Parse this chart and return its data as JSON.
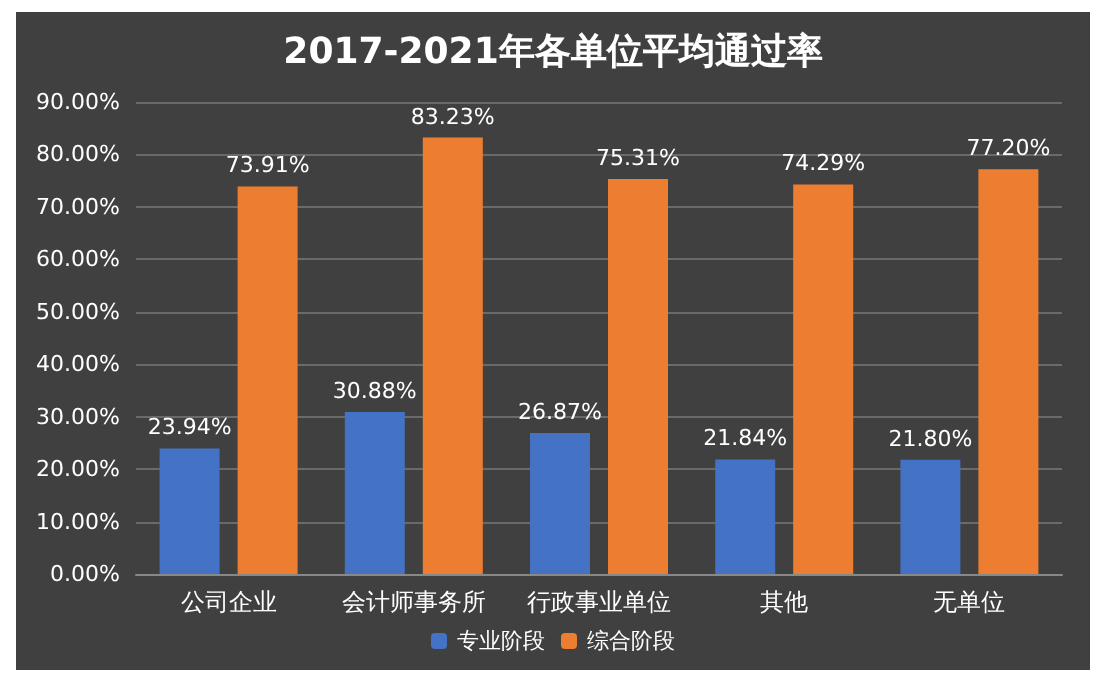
{
  "chart_data": {
    "type": "bar",
    "title": "2017-2021年各单位平均通过率",
    "categories": [
      "公司企业",
      "会计师事务所",
      "行政事业单位",
      "其他",
      "无单位"
    ],
    "series": [
      {
        "name": "专业阶段",
        "color": "#4472c4",
        "values": [
          23.94,
          30.88,
          26.87,
          21.84,
          21.8
        ],
        "value_labels": [
          "23.94%",
          "30.88%",
          "26.87%",
          "21.84%",
          "21.80%"
        ]
      },
      {
        "name": "综合阶段",
        "color": "#ed7d31",
        "values": [
          73.91,
          83.23,
          75.31,
          74.29,
          77.2
        ],
        "value_labels": [
          "73.91%",
          "83.23%",
          "75.31%",
          "74.29%",
          "77.20%"
        ]
      }
    ],
    "ylim": [
      0,
      90
    ],
    "yticks": [
      {
        "value": 0,
        "label": "0.00%"
      },
      {
        "value": 10,
        "label": "10.00%"
      },
      {
        "value": 20,
        "label": "20.00%"
      },
      {
        "value": 30,
        "label": "30.00%"
      },
      {
        "value": 40,
        "label": "40.00%"
      },
      {
        "value": 50,
        "label": "50.00%"
      },
      {
        "value": 60,
        "label": "60.00%"
      },
      {
        "value": 70,
        "label": "70.00%"
      },
      {
        "value": 80,
        "label": "80.00%"
      },
      {
        "value": 90,
        "label": "90.00%"
      }
    ],
    "grid": "y",
    "legend": "bottom"
  }
}
